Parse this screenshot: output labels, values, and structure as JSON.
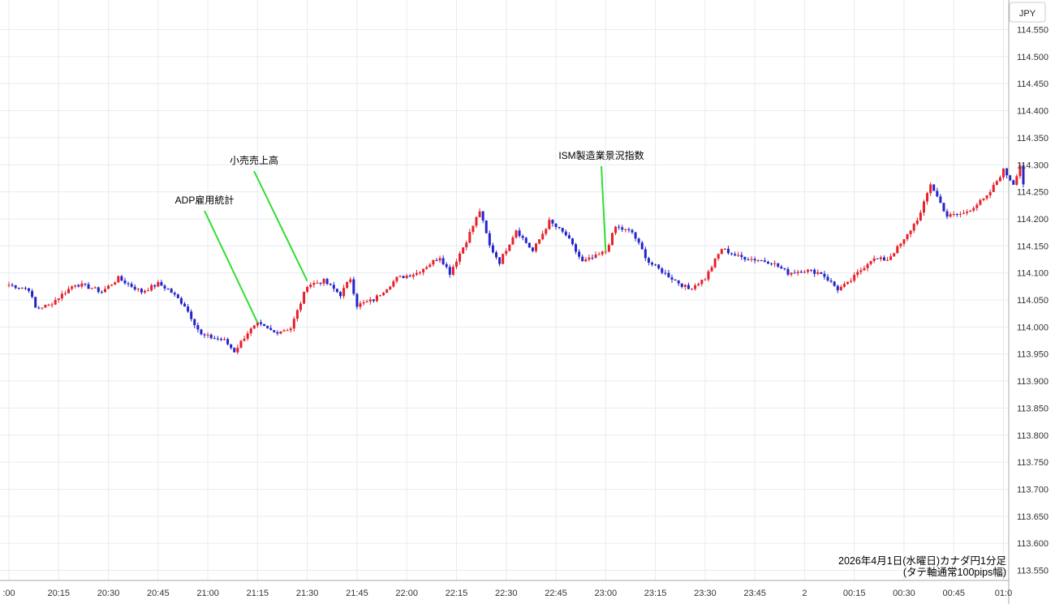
{
  "chart_data": {
    "type": "candlestick",
    "currency": "JPY",
    "ylim": [
      113.525,
      114.575
    ],
    "yticks": [
      "114.550",
      "114.500",
      "114.450",
      "114.400",
      "114.350",
      "114.300",
      "114.250",
      "114.200",
      "114.150",
      "114.100",
      "114.050",
      "114.000",
      "113.950",
      "113.900",
      "113.850",
      "113.800",
      "113.750",
      "113.700",
      "113.650",
      "113.600",
      "113.550"
    ],
    "xticks": [
      ":00",
      "20:15",
      "20:30",
      "20:45",
      "21:00",
      "21:15",
      "21:30",
      "21:45",
      "22:00",
      "22:15",
      "22:30",
      "22:45",
      "23:00",
      "23:15",
      "23:30",
      "23:45",
      "2",
      "00:15",
      "00:30",
      "00:45",
      "01:0"
    ],
    "colors": {
      "up": "#e8202a",
      "down": "#2424cc",
      "annotation_line": "#33dd33",
      "grid": "#e6ecf2",
      "axis": "#999999"
    },
    "caption": [
      "2026年4月1日(水曜日)カナダ円1分足",
      "(タテ軸通常100pips幅)"
    ],
    "annotations": [
      {
        "label": "ADP雇用統計",
        "time": "21:15",
        "price": 114.008
      },
      {
        "label": "小売売上高",
        "time": "21:30",
        "price": 114.085
      },
      {
        "label": "ISM製造業景況指数",
        "time": "23:00",
        "price": 114.14
      }
    ],
    "anchors": [
      [
        "20:00",
        114.078
      ],
      [
        "20:06",
        114.07
      ],
      [
        "20:08",
        114.035
      ],
      [
        "20:12",
        114.04
      ],
      [
        "20:15",
        114.055
      ],
      [
        "20:20",
        114.08
      ],
      [
        "20:25",
        114.072
      ],
      [
        "20:28",
        114.065
      ],
      [
        "20:33",
        114.09
      ],
      [
        "20:40",
        114.065
      ],
      [
        "20:45",
        114.08
      ],
      [
        "20:48",
        114.07
      ],
      [
        "20:53",
        114.04
      ],
      [
        "20:58",
        113.985
      ],
      [
        "21:05",
        113.975
      ],
      [
        "21:08",
        113.955
      ],
      [
        "21:12",
        113.99
      ],
      [
        "21:15",
        114.005
      ],
      [
        "21:20",
        113.99
      ],
      [
        "21:25",
        113.998
      ],
      [
        "21:28",
        114.045
      ],
      [
        "21:30",
        114.078
      ],
      [
        "21:35",
        114.085
      ],
      [
        "21:40",
        114.06
      ],
      [
        "21:43",
        114.09
      ],
      [
        "21:45",
        114.04
      ],
      [
        "21:50",
        114.05
      ],
      [
        "21:57",
        114.09
      ],
      [
        "22:03",
        114.1
      ],
      [
        "22:10",
        114.13
      ],
      [
        "22:13",
        114.1
      ],
      [
        "22:18",
        114.16
      ],
      [
        "22:22",
        114.215
      ],
      [
        "22:25",
        114.15
      ],
      [
        "22:28",
        114.12
      ],
      [
        "22:33",
        114.18
      ],
      [
        "22:38",
        114.14
      ],
      [
        "22:43",
        114.195
      ],
      [
        "22:48",
        114.17
      ],
      [
        "22:53",
        114.12
      ],
      [
        "22:57",
        114.13
      ],
      [
        "23:00",
        114.14
      ],
      [
        "23:03",
        114.185
      ],
      [
        "23:08",
        114.175
      ],
      [
        "23:13",
        114.12
      ],
      [
        "23:20",
        114.09
      ],
      [
        "23:25",
        114.07
      ],
      [
        "23:30",
        114.09
      ],
      [
        "23:35",
        114.145
      ],
      [
        "23:40",
        114.13
      ],
      [
        "23:45",
        114.125
      ],
      [
        "23:50",
        114.12
      ],
      [
        "23:55",
        114.1
      ],
      [
        "24:00",
        114.105
      ],
      [
        "24:05",
        114.1
      ],
      [
        "24:10",
        114.07
      ],
      [
        "24:13",
        114.08
      ],
      [
        "24:20",
        114.125
      ],
      [
        "24:25",
        114.125
      ],
      [
        "24:30",
        114.16
      ],
      [
        "24:35",
        114.21
      ],
      [
        "24:38",
        114.265
      ],
      [
        "24:43",
        114.205
      ],
      [
        "24:48",
        114.21
      ],
      [
        "24:55",
        114.24
      ],
      [
        "25:00",
        114.29
      ],
      [
        "25:03",
        114.265
      ],
      [
        "25:05",
        114.3
      ],
      [
        "25:06",
        114.265
      ]
    ]
  }
}
